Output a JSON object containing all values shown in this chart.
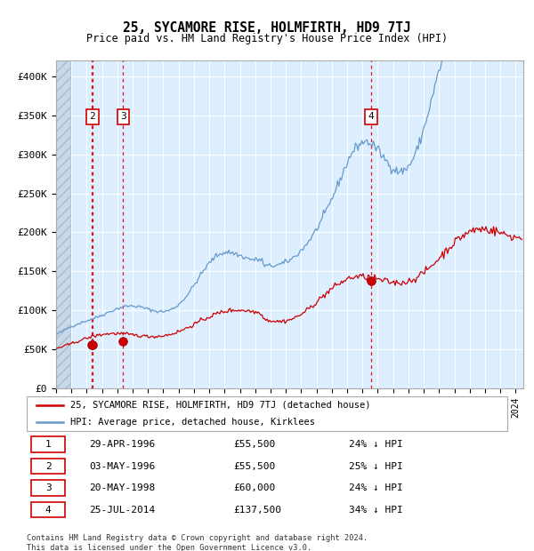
{
  "title": "25, SYCAMORE RISE, HOLMFIRTH, HD9 7TJ",
  "subtitle": "Price paid vs. HM Land Registry's House Price Index (HPI)",
  "legend_property": "25, SYCAMORE RISE, HOLMFIRTH, HD9 7TJ (detached house)",
  "legend_hpi": "HPI: Average price, detached house, Kirklees",
  "property_color": "#cc0000",
  "hpi_color": "#6699cc",
  "transaction_color": "#cc0000",
  "vline_color": "#dd0000",
  "transactions": [
    {
      "id": 1,
      "date_label": "29-APR-1996",
      "date_x": 1996.33,
      "price": 55500,
      "note": "24% ↓ HPI"
    },
    {
      "id": 2,
      "date_label": "03-MAY-1996",
      "date_x": 1996.37,
      "price": 55500,
      "note": "25% ↓ HPI"
    },
    {
      "id": 3,
      "date_label": "20-MAY-1998",
      "date_x": 1998.38,
      "price": 60000,
      "note": "24% ↓ HPI"
    },
    {
      "id": 4,
      "date_label": "25-JUL-2014",
      "date_x": 2014.56,
      "price": 137500,
      "note": "34% ↓ HPI"
    }
  ],
  "annotation_ids_shown": [
    2,
    3,
    4
  ],
  "ylim": [
    0,
    420000
  ],
  "xlim": [
    1994.0,
    2024.5
  ],
  "yticks": [
    0,
    50000,
    100000,
    150000,
    200000,
    250000,
    300000,
    350000,
    400000
  ],
  "ytick_labels": [
    "£0",
    "£50K",
    "£100K",
    "£150K",
    "£200K",
    "£250K",
    "£300K",
    "£350K",
    "£400K"
  ],
  "footer_line1": "Contains HM Land Registry data © Crown copyright and database right 2024.",
  "footer_line2": "This data is licensed under the Open Government Licence v3.0.",
  "background_color": "#ddeeff",
  "hatch_region_end": 1994.92
}
